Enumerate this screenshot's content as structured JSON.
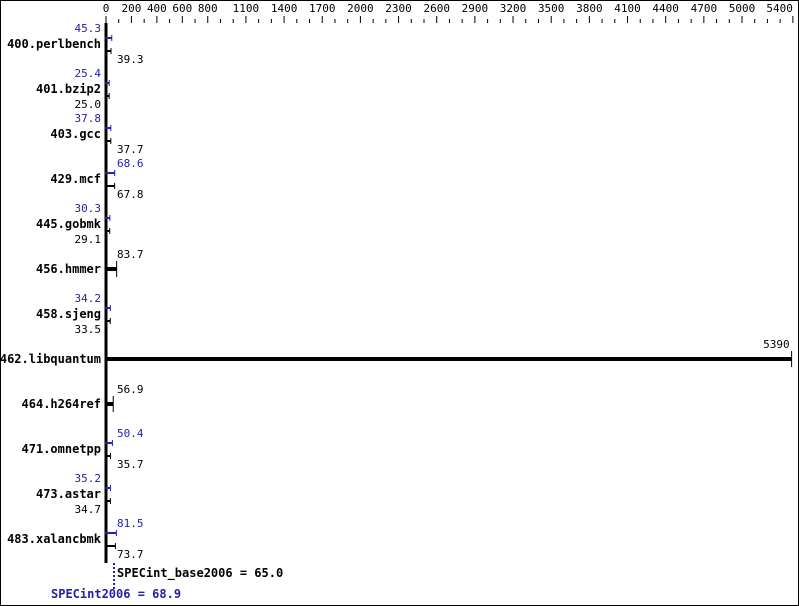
{
  "chart_data": {
    "type": "bar",
    "orientation": "horizontal",
    "xlim": [
      0,
      5400
    ],
    "ticks": [
      0,
      200,
      400,
      600,
      800,
      1100,
      1400,
      1700,
      2000,
      2300,
      2600,
      2900,
      3200,
      3500,
      3800,
      4100,
      4400,
      4700,
      5000,
      5400
    ],
    "categories": [
      "400.perlbench",
      "401.bzip2",
      "403.gcc",
      "429.mcf",
      "445.gobmk",
      "456.hmmer",
      "458.sjeng",
      "462.libquantum",
      "464.h264ref",
      "471.omnetpp",
      "473.astar",
      "483.xalancbmk"
    ],
    "series": [
      {
        "name": "SPECint2006",
        "values": [
          45.3,
          25.4,
          37.8,
          68.6,
          30.3,
          null,
          34.2,
          null,
          null,
          50.4,
          35.2,
          81.5
        ]
      },
      {
        "name": "SPECint_base2006",
        "values": [
          39.3,
          25.0,
          37.7,
          67.8,
          29.1,
          83.7,
          33.5,
          5390,
          56.9,
          35.7,
          34.7,
          73.7
        ]
      }
    ],
    "summary": {
      "base_label": "SPECint_base2006 = 65.0",
      "peak_label": "SPECint2006 = 68.9",
      "base_value": 65.0,
      "peak_value": 68.9
    },
    "colors": {
      "base": "#000000",
      "peak": "#2222aa"
    }
  }
}
